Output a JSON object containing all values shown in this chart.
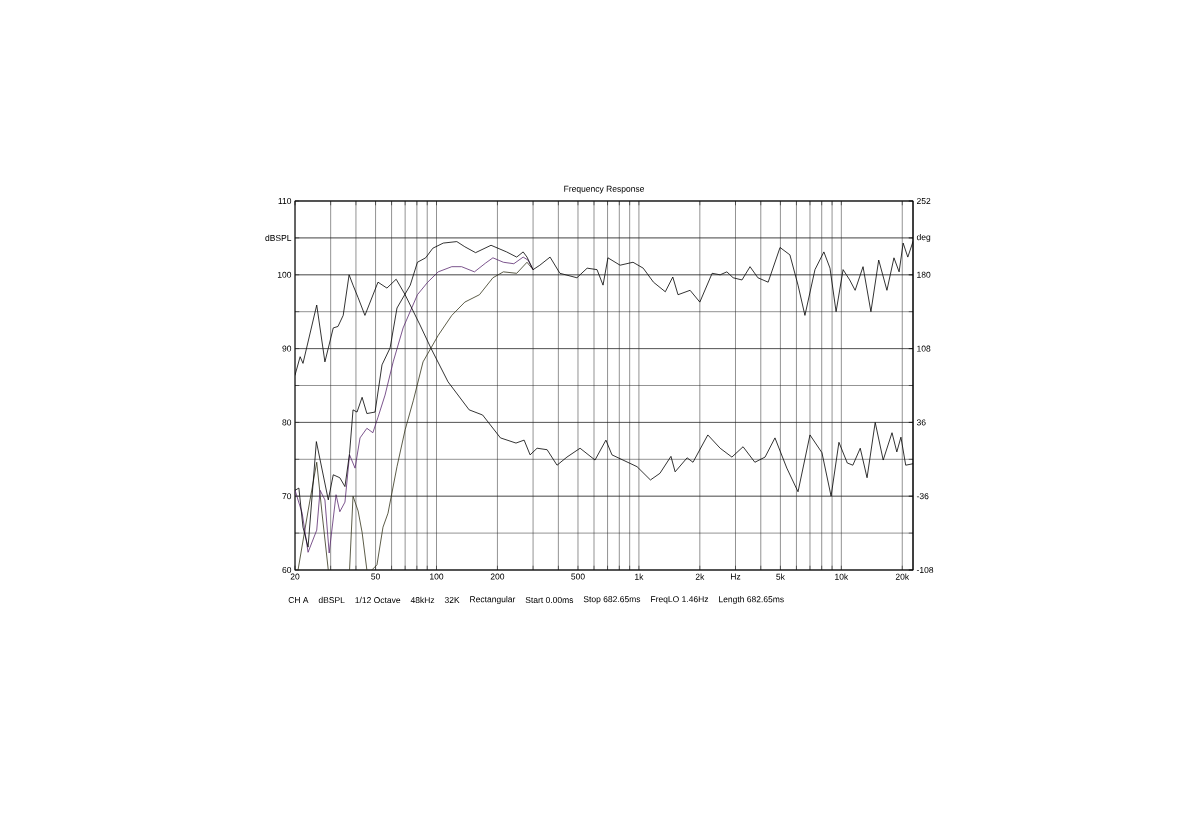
{
  "chart_data": {
    "type": "line",
    "title": "Frequency Response",
    "annotations": [
      "CH A",
      "dBSPL",
      "1/12 Octave",
      "48kHz",
      "32K",
      "Rectangular",
      "Start 0.00ms",
      "Stop 682.65ms",
      "FreqLO 1.46Hz",
      "Length 682.65ms"
    ],
    "log": "x",
    "grid": true,
    "line_style": "solid",
    "xlim": [
      20,
      22600
    ],
    "ylim": [
      60,
      110
    ],
    "y2lim": [
      -108,
      252
    ],
    "xticks": [
      20,
      {
        "value": 30,
        "label": null
      },
      {
        "value": 40,
        "label": null
      },
      50,
      {
        "value": 60,
        "label": null
      },
      {
        "value": 70,
        "label": null
      },
      {
        "value": 80,
        "label": null
      },
      {
        "value": 90,
        "label": null
      },
      100,
      200,
      {
        "value": 300,
        "label": null
      },
      {
        "value": 400,
        "label": null
      },
      500,
      {
        "value": 600,
        "label": null
      },
      {
        "value": 700,
        "label": null
      },
      {
        "value": 800,
        "label": null
      },
      {
        "value": 900,
        "label": null
      },
      {
        "value": 1000,
        "label": "1k"
      },
      {
        "value": 2000,
        "label": "2k"
      },
      {
        "value": 3000,
        "label": "Hz"
      },
      {
        "value": 4000,
        "label": null
      },
      {
        "value": 5000,
        "label": "5k"
      },
      {
        "value": 6000,
        "label": null
      },
      {
        "value": 7000,
        "label": null
      },
      {
        "value": 8000,
        "label": null
      },
      {
        "value": 9000,
        "label": null
      },
      {
        "value": 10000,
        "label": "10k"
      },
      {
        "value": 20000,
        "label": "20k"
      }
    ],
    "yticks": [
      60,
      {
        "value": 65,
        "label": null
      },
      70,
      {
        "value": 75,
        "label": null
      },
      80,
      {
        "value": 85,
        "label": null
      },
      90,
      {
        "value": 95,
        "label": null
      },
      100,
      {
        "value": 105,
        "label": "dBSPL"
      },
      110
    ],
    "y2ticks": [
      -108,
      -36,
      36,
      108,
      180,
      {
        "value": 216,
        "label": "deg"
      },
      252
    ],
    "series": [
      {
        "color": "#33331a",
        "x": [
          20.7,
          23.2,
          25.6,
          27.2,
          29.2,
          33,
          37.2,
          38.7,
          41,
          42.9,
          45.3,
          46.5,
          47.9,
          50.8,
          54.4,
          57.6,
          63.8,
          70,
          76.9,
          85.8,
          102,
          119,
          138,
          163,
          190,
          214,
          249,
          280,
          300
        ],
        "values": [
          60,
          68,
          74.6,
          67.7,
          60,
          null,
          60,
          70,
          68,
          65.1,
          60,
          null,
          60,
          60.7,
          65.8,
          67.7,
          74,
          79,
          83,
          88.2,
          91.8,
          94.5,
          96.3,
          97.3,
          99.6,
          100.4,
          100.2,
          101.7,
          100.7
        ]
      },
      {
        "color": "#5b2a70",
        "x": [
          20,
          21.7,
          23.2,
          25.6,
          26.6,
          28.1,
          29.5,
          31.9,
          33.3,
          35.3,
          37.2,
          39.6,
          41.9,
          45.3,
          48.5,
          51.4,
          55.7,
          61.1,
          68.4,
          80.5,
          90.5,
          102,
          119,
          133,
          154,
          175,
          190,
          214,
          241,
          268,
          283,
          300
        ],
        "values": [
          70.8,
          67.7,
          62.4,
          65.4,
          70.8,
          69.5,
          62.3,
          70.2,
          67.9,
          69.2,
          75.6,
          73.8,
          77.9,
          79.2,
          78.6,
          80.7,
          83.7,
          88.2,
          92.8,
          97.3,
          99,
          100.4,
          101.1,
          101.1,
          100.4,
          101.6,
          102.3,
          101.7,
          101.5,
          102.4,
          102,
          100.7
        ]
      },
      {
        "color": "#000000",
        "x": [
          20,
          21.2,
          21.9,
          25.6,
          28.1,
          30.9,
          32.6,
          34.6,
          37,
          38.7,
          41,
          44.3,
          51.4,
          56.9,
          63.2,
          70,
          82.9,
          93.7,
          114,
          145,
          169,
          207,
          247,
          271,
          290,
          314,
          352,
          394,
          441,
          512,
          607,
          687,
          736,
          834,
          979,
          1140,
          1270,
          1440,
          1510,
          1730,
          1850,
          2190,
          2520,
          2880,
          3270,
          3740,
          4200,
          4700,
          5380,
          6110,
          7000,
          8020,
          8900,
          9730,
          10700,
          11400,
          12400,
          13400,
          14700,
          16100,
          17800,
          18800,
          19700,
          20800,
          22600
        ],
        "values": [
          86.4,
          88.9,
          88,
          95.9,
          88.2,
          92.8,
          93,
          94.5,
          100,
          98.6,
          96.9,
          94.5,
          99,
          98.2,
          99.4,
          97.3,
          93.2,
          90.1,
          85.5,
          81.7,
          81,
          77.9,
          77.2,
          77.6,
          75.6,
          76.5,
          76.3,
          74.2,
          75.3,
          76.5,
          74.9,
          77.6,
          75.6,
          74.9,
          74,
          72.2,
          73.1,
          75.4,
          73.3,
          75.2,
          74.6,
          78.3,
          76.5,
          75.3,
          76.7,
          74.6,
          75.3,
          77.9,
          73.8,
          70.6,
          78.3,
          75.9,
          70,
          77.3,
          74.5,
          74.2,
          76.5,
          72.5,
          80,
          74.9,
          78.6,
          76,
          78,
          74.2,
          74.4
        ]
      },
      {
        "color": "#000000",
        "x": [
          20,
          20.9,
          21.9,
          23.2,
          25.5,
          29.2,
          30.9,
          33.3,
          35.3,
          37.2,
          38.7,
          40.5,
          42.9,
          45.3,
          49.7,
          53.8,
          59,
          63.8,
          74.2,
          80.5,
          88.4,
          95.9,
          108,
          126,
          138,
          156,
          186,
          222,
          249,
          268,
          280,
          300,
          324,
          364,
          407,
          494,
          555,
          621,
          665,
          703,
          807,
          935,
          1050,
          1180,
          1350,
          1470,
          1560,
          1790,
          2000,
          2300,
          2520,
          2720,
          2920,
          3230,
          3540,
          3870,
          4350,
          4980,
          5570,
          6110,
          6610,
          7410,
          8200,
          8790,
          9420,
          10200,
          11000,
          11700,
          12800,
          14000,
          15300,
          16800,
          18200,
          19300,
          20200,
          21300,
          22600
        ],
        "values": [
          70.8,
          71.1,
          65.8,
          63.1,
          77.4,
          69.5,
          72.9,
          72.5,
          71.3,
          75.8,
          81.7,
          81.4,
          83.4,
          81.2,
          81.4,
          87.8,
          90.1,
          95.5,
          98.6,
          101.7,
          102.3,
          103.6,
          104.3,
          104.5,
          103.8,
          103,
          104,
          103.1,
          102.4,
          103.1,
          102.4,
          100.7,
          101.3,
          102.4,
          100.2,
          99.6,
          100.9,
          100.7,
          98.6,
          102.3,
          101.3,
          101.7,
          100.9,
          99,
          97.7,
          99.7,
          97.3,
          97.9,
          96.3,
          100.2,
          100,
          100.4,
          99.6,
          99.3,
          101.1,
          99.6,
          99,
          103.7,
          102.7,
          98.6,
          94.5,
          100.7,
          103.1,
          100.9,
          95,
          100.7,
          99.3,
          97.9,
          101.1,
          95,
          102,
          97.9,
          102.3,
          100.4,
          104.3,
          102.4,
          104.5
        ]
      }
    ]
  }
}
